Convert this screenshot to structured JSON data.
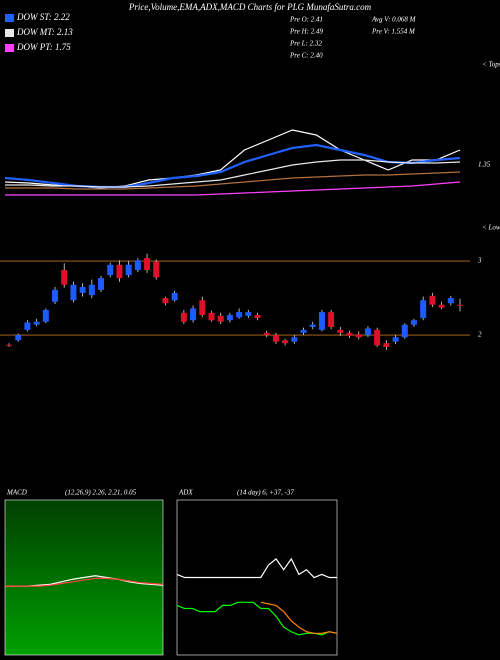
{
  "header": {
    "title": "Price,Volume,EMA,ADX,MACD Charts for PLG MunafaSutra.com",
    "stats": [
      "Pre O: 2.41",
      "Pre H: 2.49",
      "Pre L: 2.32",
      "Pre C: 2.40",
      "Avg V: 0.068 M",
      "Pre V: 1.554 M"
    ],
    "tops": "< Tops",
    "lows": "< Lows"
  },
  "chart_data": [
    {
      "type": "line",
      "ylim": [
        1.0,
        2.4
      ],
      "yticks": [
        1.35
      ],
      "series": [
        {
          "color": "#ffffff",
          "values": [
            1.18,
            1.17,
            1.15,
            1.14,
            1.12,
            1.14,
            1.2,
            1.22,
            1.25,
            1.3,
            1.5,
            1.6,
            1.7,
            1.65,
            1.5,
            1.4,
            1.3,
            1.4,
            1.4,
            1.5
          ]
        },
        {
          "color": "#b07040",
          "values": [
            1.12,
            1.12,
            1.12,
            1.11,
            1.11,
            1.11,
            1.12,
            1.13,
            1.14,
            1.16,
            1.18,
            1.2,
            1.22,
            1.23,
            1.24,
            1.25,
            1.25,
            1.26,
            1.27,
            1.28
          ]
        },
        {
          "name": "DOW ST: 2.22",
          "color": "#2060ff",
          "values": [
            1.22,
            1.2,
            1.17,
            1.14,
            1.13,
            1.13,
            1.17,
            1.22,
            1.24,
            1.28,
            1.38,
            1.45,
            1.52,
            1.55,
            1.5,
            1.45,
            1.38,
            1.37,
            1.4,
            1.42
          ]
        },
        {
          "name": "DOW MT: 2.13",
          "color": "#e8e8e8",
          "values": [
            1.15,
            1.15,
            1.14,
            1.14,
            1.13,
            1.13,
            1.14,
            1.16,
            1.18,
            1.2,
            1.25,
            1.3,
            1.35,
            1.38,
            1.4,
            1.4,
            1.38,
            1.37,
            1.37,
            1.38
          ]
        },
        {
          "name": "DOW PT: 1.75",
          "color": "#ff40ff",
          "values": [
            1.05,
            1.05,
            1.05,
            1.05,
            1.05,
            1.05,
            1.05,
            1.05,
            1.05,
            1.06,
            1.07,
            1.08,
            1.09,
            1.1,
            1.11,
            1.12,
            1.13,
            1.14,
            1.16,
            1.18
          ]
        }
      ]
    },
    {
      "type": "candlestick",
      "ylim": [
        0,
        3.65
      ],
      "yticks": [
        2,
        3
      ],
      "up_color": "#1e5bff",
      "down_color": "#e0102a",
      "open": [
        1.87,
        1.93,
        2.07,
        2.14,
        2.18,
        2.45,
        2.88,
        2.47,
        2.57,
        2.54,
        2.61,
        2.81,
        2.95,
        2.81,
        2.88,
        3.04,
        2.99,
        2.5,
        2.47,
        2.3,
        2.2,
        2.47,
        2.3,
        2.26,
        2.2,
        2.24,
        2.26,
        2.27,
        2.03,
        2.0,
        1.93,
        1.91,
        2.03,
        2.11,
        2.07,
        2.31,
        2.07,
        2.03,
        2.01,
        2.0,
        2.07,
        1.89,
        1.91,
        1.97,
        2.14,
        2.23,
        2.53,
        2.41,
        2.43,
        2.41
      ],
      "high": [
        1.89,
        2.02,
        2.2,
        2.22,
        2.36,
        2.65,
        2.97,
        2.72,
        2.7,
        2.75,
        2.8,
        2.98,
        3.01,
        3.0,
        3.04,
        3.1,
        3.02,
        2.52,
        2.6,
        2.34,
        2.4,
        2.52,
        2.33,
        2.3,
        2.3,
        2.36,
        2.34,
        2.3,
        2.06,
        2.03,
        1.95,
        2.0,
        2.1,
        2.18,
        2.34,
        2.34,
        2.11,
        2.06,
        2.05,
        2.12,
        2.1,
        1.93,
        2.0,
        2.16,
        2.22,
        2.52,
        2.57,
        2.45,
        2.53,
        2.49
      ],
      "low": [
        1.84,
        1.91,
        2.05,
        2.12,
        2.16,
        2.42,
        2.64,
        2.44,
        2.52,
        2.5,
        2.58,
        2.78,
        2.72,
        2.78,
        2.85,
        2.84,
        2.75,
        2.4,
        2.45,
        2.15,
        2.17,
        2.24,
        2.18,
        2.15,
        2.17,
        2.22,
        2.23,
        2.2,
        1.97,
        1.88,
        1.86,
        1.88,
        2.0,
        2.08,
        2.05,
        2.08,
        1.99,
        1.96,
        1.94,
        1.97,
        1.84,
        1.8,
        1.88,
        1.95,
        2.11,
        2.2,
        2.38,
        2.35,
        2.4,
        2.32
      ],
      "close": [
        1.86,
        2.0,
        2.17,
        2.18,
        2.34,
        2.61,
        2.68,
        2.68,
        2.65,
        2.68,
        2.77,
        2.95,
        2.77,
        2.95,
        3.01,
        2.88,
        2.78,
        2.43,
        2.57,
        2.18,
        2.36,
        2.27,
        2.2,
        2.18,
        2.27,
        2.31,
        2.31,
        2.23,
        2.0,
        1.91,
        1.89,
        1.97,
        2.07,
        2.14,
        2.31,
        2.11,
        2.03,
        1.99,
        1.97,
        2.09,
        1.86,
        1.84,
        1.97,
        2.14,
        2.2,
        2.47,
        2.41,
        2.37,
        2.5,
        2.4
      ]
    },
    {
      "type": "line",
      "title": "MACD",
      "subtitle": "(12,26,9) 2.26, 2.21, 0.05",
      "ylim": [
        -0.8,
        1.0
      ],
      "series": [
        {
          "color": "#ffffff",
          "values": [
            0,
            0,
            0,
            0.01,
            0.02,
            0.05,
            0.08,
            0.1,
            0.12,
            0.1,
            0.08,
            0.05,
            0.03,
            0.02,
            0.01
          ]
        },
        {
          "color": "#ff4040",
          "values": [
            0,
            0,
            0,
            0,
            0.01,
            0.03,
            0.05,
            0.07,
            0.09,
            0.09,
            0.08,
            0.06,
            0.04,
            0.03,
            0.02
          ]
        }
      ]
    },
    {
      "type": "line",
      "title": "ADX",
      "subtitle": "(14 day) 6, +37, -37",
      "ylim": [
        0,
        100
      ],
      "series": [
        {
          "color": "#ffffff",
          "values": [
            52,
            50,
            50,
            50,
            50,
            50,
            50,
            50,
            50,
            50,
            50,
            50,
            58,
            62,
            55,
            62,
            52,
            55,
            50,
            52,
            50,
            50
          ]
        },
        {
          "color": "#00ff00",
          "values": [
            32,
            30,
            30,
            28,
            28,
            28,
            32,
            32,
            34,
            34,
            34,
            30,
            30,
            25,
            18,
            15,
            13,
            14,
            14,
            13,
            15,
            14
          ]
        },
        {
          "color": "#ff8000",
          "values": [
            null,
            null,
            null,
            null,
            null,
            null,
            null,
            null,
            null,
            null,
            null,
            34,
            33,
            32,
            28,
            22,
            18,
            15,
            14,
            14,
            15,
            14
          ]
        }
      ]
    }
  ]
}
